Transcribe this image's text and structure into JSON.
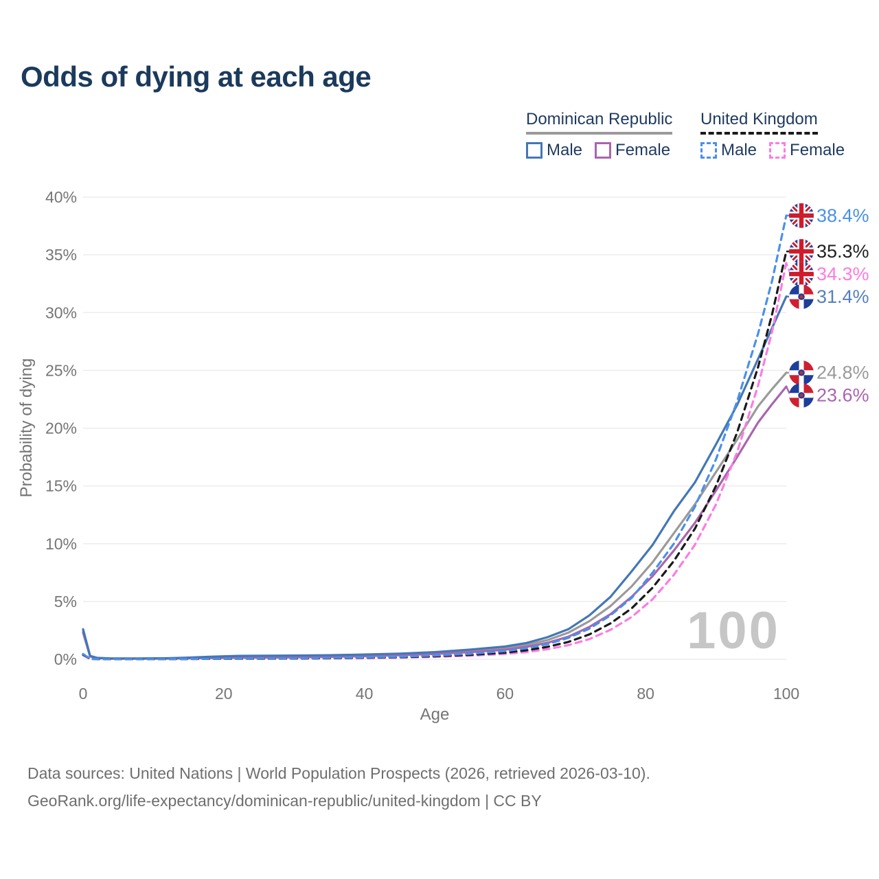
{
  "title": "Odds of dying at each age",
  "legend": {
    "groups": [
      {
        "label": "Dominican Republic",
        "line_style": "solid",
        "underline_color": "#9a9a9a"
      },
      {
        "label": "United Kingdom",
        "line_style": "dashed",
        "underline_color": "#1a1a1a"
      }
    ],
    "items": [
      {
        "label": "Male",
        "color": "#4377b6",
        "dash": false
      },
      {
        "label": "Female",
        "color": "#a965ae",
        "dash": false
      },
      {
        "label": "Male",
        "color": "#4a90e8",
        "dash": true
      },
      {
        "label": "Female",
        "color": "#fb7ce1",
        "dash": true
      }
    ]
  },
  "chart_data": {
    "type": "line",
    "title": "Odds of dying at each age",
    "xlabel": "Age",
    "ylabel": "Probability of dying",
    "xlim": [
      0,
      100
    ],
    "ylim": [
      0,
      40
    ],
    "x_ticks": [
      0,
      20,
      40,
      60,
      80,
      100
    ],
    "y_ticks": [
      0,
      5,
      10,
      15,
      20,
      25,
      30,
      35,
      40
    ],
    "y_tick_suffix": "%",
    "grid": true,
    "watermark": "100",
    "legend_position": "top-right",
    "series": [
      {
        "id": "do-all",
        "name": "Dominican Republic (all)",
        "country": "do",
        "sex": "all",
        "color": "#9a9a9a",
        "label_color": "#9a9a9a",
        "dash": false,
        "end_value": 24.8,
        "end_label": "24.8%",
        "points": [
          [
            0,
            2.45
          ],
          [
            1,
            0.27
          ],
          [
            2,
            0.11
          ],
          [
            4,
            0.06
          ],
          [
            8,
            0.06
          ],
          [
            12,
            0.08
          ],
          [
            15,
            0.11
          ],
          [
            18,
            0.16
          ],
          [
            22,
            0.21
          ],
          [
            26,
            0.23
          ],
          [
            30,
            0.25
          ],
          [
            35,
            0.28
          ],
          [
            40,
            0.34
          ],
          [
            45,
            0.42
          ],
          [
            50,
            0.53
          ],
          [
            55,
            0.71
          ],
          [
            60,
            0.95
          ],
          [
            63,
            1.25
          ],
          [
            66,
            1.65
          ],
          [
            69,
            2.3
          ],
          [
            72,
            3.3
          ],
          [
            75,
            4.6
          ],
          [
            78,
            6.3
          ],
          [
            81,
            8.4
          ],
          [
            84,
            10.9
          ],
          [
            87,
            13.4
          ],
          [
            90,
            16.2
          ],
          [
            93,
            19.0
          ],
          [
            96,
            21.9
          ],
          [
            98,
            23.4
          ],
          [
            100,
            24.8
          ]
        ]
      },
      {
        "id": "do-female",
        "name": "Dominican Republic Female",
        "country": "do",
        "sex": "female",
        "color": "#a965ae",
        "label_color": "#a965ae",
        "dash": false,
        "end_value": 23.6,
        "end_label": "23.6%",
        "points": [
          [
            0,
            2.3
          ],
          [
            1,
            0.24
          ],
          [
            2,
            0.1
          ],
          [
            4,
            0.05
          ],
          [
            8,
            0.05
          ],
          [
            12,
            0.06
          ],
          [
            15,
            0.08
          ],
          [
            18,
            0.1
          ],
          [
            22,
            0.13
          ],
          [
            26,
            0.15
          ],
          [
            30,
            0.17
          ],
          [
            35,
            0.21
          ],
          [
            40,
            0.27
          ],
          [
            45,
            0.35
          ],
          [
            50,
            0.46
          ],
          [
            55,
            0.61
          ],
          [
            60,
            0.82
          ],
          [
            63,
            1.07
          ],
          [
            66,
            1.42
          ],
          [
            69,
            1.95
          ],
          [
            72,
            2.8
          ],
          [
            75,
            3.9
          ],
          [
            78,
            5.4
          ],
          [
            81,
            7.2
          ],
          [
            84,
            9.4
          ],
          [
            87,
            11.8
          ],
          [
            90,
            14.6
          ],
          [
            93,
            17.5
          ],
          [
            96,
            20.5
          ],
          [
            98,
            22.1
          ],
          [
            100,
            23.6
          ]
        ]
      },
      {
        "id": "do-male",
        "name": "Dominican Republic Male",
        "country": "do",
        "sex": "male",
        "color": "#4377b6",
        "label_color": "#5580bb",
        "dash": false,
        "end_value": 31.4,
        "end_label": "31.4%",
        "points": [
          [
            0,
            2.6
          ],
          [
            1,
            0.3
          ],
          [
            2,
            0.12
          ],
          [
            4,
            0.07
          ],
          [
            8,
            0.07
          ],
          [
            12,
            0.09
          ],
          [
            15,
            0.14
          ],
          [
            18,
            0.22
          ],
          [
            22,
            0.29
          ],
          [
            26,
            0.31
          ],
          [
            30,
            0.32
          ],
          [
            35,
            0.35
          ],
          [
            40,
            0.41
          ],
          [
            45,
            0.49
          ],
          [
            50,
            0.62
          ],
          [
            55,
            0.83
          ],
          [
            60,
            1.1
          ],
          [
            63,
            1.4
          ],
          [
            66,
            1.9
          ],
          [
            69,
            2.6
          ],
          [
            72,
            3.8
          ],
          [
            75,
            5.4
          ],
          [
            78,
            7.6
          ],
          [
            81,
            9.9
          ],
          [
            84,
            12.8
          ],
          [
            87,
            15.3
          ],
          [
            90,
            18.6
          ],
          [
            93,
            22.0
          ],
          [
            96,
            26.0
          ],
          [
            98,
            28.7
          ],
          [
            100,
            31.4
          ]
        ]
      },
      {
        "id": "uk-female",
        "name": "United Kingdom Female",
        "country": "uk",
        "sex": "female",
        "color": "#fb7ce1",
        "label_color": "#fb7ce1",
        "dash": true,
        "end_value": 34.3,
        "end_label": "34.3%",
        "points": [
          [
            0,
            0.35
          ],
          [
            1,
            0.03
          ],
          [
            2,
            0.013
          ],
          [
            4,
            0.01
          ],
          [
            8,
            0.01
          ],
          [
            12,
            0.013
          ],
          [
            15,
            0.02
          ],
          [
            18,
            0.03
          ],
          [
            22,
            0.04
          ],
          [
            26,
            0.045
          ],
          [
            30,
            0.05
          ],
          [
            35,
            0.07
          ],
          [
            40,
            0.1
          ],
          [
            45,
            0.14
          ],
          [
            50,
            0.21
          ],
          [
            55,
            0.31
          ],
          [
            60,
            0.46
          ],
          [
            63,
            0.62
          ],
          [
            66,
            0.87
          ],
          [
            69,
            1.22
          ],
          [
            72,
            1.75
          ],
          [
            75,
            2.55
          ],
          [
            78,
            3.65
          ],
          [
            81,
            5.2
          ],
          [
            84,
            7.3
          ],
          [
            87,
            9.9
          ],
          [
            90,
            13.4
          ],
          [
            93,
            17.9
          ],
          [
            96,
            23.7
          ],
          [
            98,
            28.4
          ],
          [
            100,
            34.3
          ]
        ]
      },
      {
        "id": "uk-all",
        "name": "United Kingdom (all)",
        "country": "uk",
        "sex": "all",
        "color": "#1a1a1a",
        "label_color": "#1f1f1f",
        "dash": true,
        "end_value": 35.3,
        "end_label": "35.3%",
        "points": [
          [
            0,
            0.4
          ],
          [
            1,
            0.035
          ],
          [
            2,
            0.015
          ],
          [
            4,
            0.01
          ],
          [
            8,
            0.01
          ],
          [
            12,
            0.015
          ],
          [
            15,
            0.025
          ],
          [
            18,
            0.04
          ],
          [
            22,
            0.05
          ],
          [
            26,
            0.055
          ],
          [
            30,
            0.065
          ],
          [
            35,
            0.09
          ],
          [
            40,
            0.13
          ],
          [
            45,
            0.18
          ],
          [
            50,
            0.26
          ],
          [
            55,
            0.38
          ],
          [
            60,
            0.57
          ],
          [
            63,
            0.77
          ],
          [
            66,
            1.07
          ],
          [
            69,
            1.5
          ],
          [
            72,
            2.15
          ],
          [
            75,
            3.1
          ],
          [
            78,
            4.4
          ],
          [
            81,
            6.2
          ],
          [
            84,
            8.5
          ],
          [
            87,
            11.3
          ],
          [
            90,
            15.0
          ],
          [
            93,
            19.6
          ],
          [
            96,
            25.3
          ],
          [
            98,
            29.9
          ],
          [
            100,
            35.3
          ]
        ]
      },
      {
        "id": "uk-male",
        "name": "United Kingdom Male",
        "country": "uk",
        "sex": "male",
        "color": "#4a90e8",
        "label_color": "#4a90e8",
        "dash": true,
        "end_value": 38.4,
        "end_label": "38.4%",
        "points": [
          [
            0,
            0.45
          ],
          [
            1,
            0.04
          ],
          [
            2,
            0.02
          ],
          [
            4,
            0.01
          ],
          [
            8,
            0.01
          ],
          [
            12,
            0.02
          ],
          [
            15,
            0.03
          ],
          [
            18,
            0.05
          ],
          [
            22,
            0.06
          ],
          [
            26,
            0.07
          ],
          [
            30,
            0.08
          ],
          [
            35,
            0.11
          ],
          [
            40,
            0.16
          ],
          [
            45,
            0.22
          ],
          [
            50,
            0.32
          ],
          [
            55,
            0.47
          ],
          [
            60,
            0.7
          ],
          [
            63,
            0.95
          ],
          [
            66,
            1.3
          ],
          [
            69,
            1.85
          ],
          [
            72,
            2.65
          ],
          [
            75,
            3.8
          ],
          [
            78,
            5.3
          ],
          [
            81,
            7.5
          ],
          [
            84,
            10.0
          ],
          [
            87,
            13.2
          ],
          [
            90,
            17.3
          ],
          [
            93,
            22.3
          ],
          [
            96,
            28.2
          ],
          [
            98,
            32.8
          ],
          [
            100,
            38.4
          ]
        ]
      }
    ]
  },
  "footer": {
    "line1": "Data sources: United Nations | World Population Prospects (2026, retrieved 2026-03-10).",
    "line2": "GeoRank.org/life-expectancy/dominican-republic/united-kingdom | CC BY"
  }
}
